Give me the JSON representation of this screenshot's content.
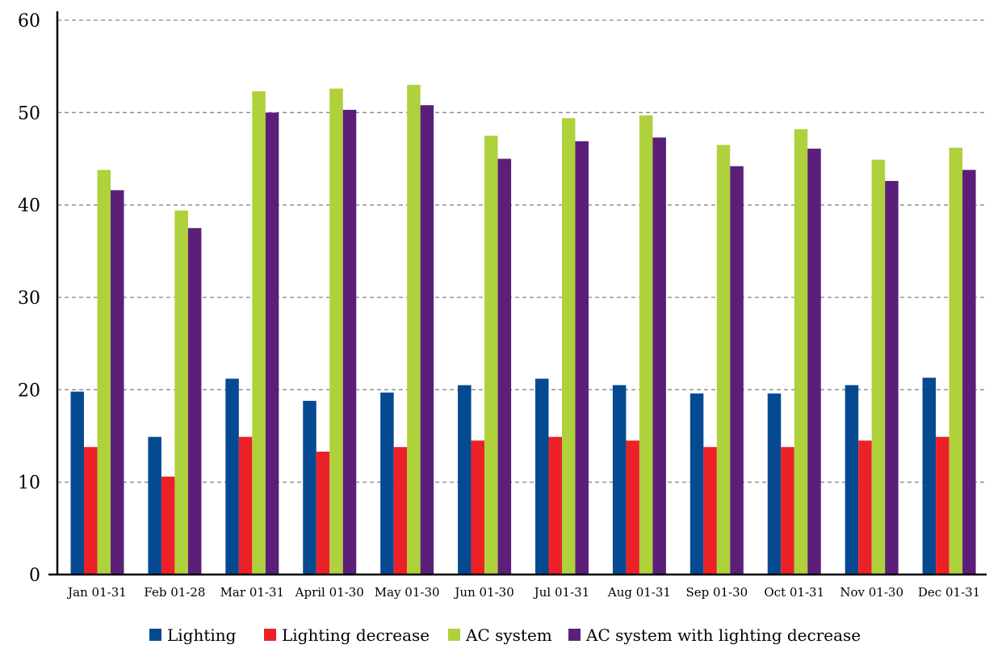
{
  "chart_data": {
    "type": "bar",
    "title": "",
    "xlabel": "",
    "ylabel": "",
    "ylim": [
      0,
      60
    ],
    "yticks": [
      0,
      10,
      20,
      30,
      40,
      50,
      60
    ],
    "grid": true,
    "legend_position": "bottom",
    "categories": [
      "Jan 01-31",
      "Feb 01-28",
      "Mar 01-31",
      "April 01-30",
      "May 01-30",
      "Jun 01-30",
      "Jul 01-31",
      "Aug 01-31",
      "Sep 01-30",
      "Oct 01-31",
      "Nov 01-30",
      "Dec 01-31"
    ],
    "series": [
      {
        "name": "Lighting",
        "color": "#054a91",
        "values": [
          19.8,
          14.9,
          21.2,
          18.8,
          19.7,
          20.5,
          21.2,
          20.5,
          19.6,
          19.6,
          20.5,
          21.3
        ]
      },
      {
        "name": "Lighting decrease",
        "color": "#ec2127",
        "values": [
          13.8,
          10.6,
          14.9,
          13.3,
          13.8,
          14.5,
          14.9,
          14.5,
          13.8,
          13.8,
          14.5,
          14.9
        ]
      },
      {
        "name": "AC system",
        "color": "#afd13c",
        "values": [
          43.8,
          39.4,
          52.3,
          52.6,
          53.0,
          47.5,
          49.4,
          49.7,
          46.5,
          48.2,
          44.9,
          46.2
        ]
      },
      {
        "name": "AC system with lighting decrease",
        "color": "#5b1f7a",
        "values": [
          41.6,
          37.5,
          50.0,
          50.3,
          50.8,
          45.0,
          46.9,
          47.3,
          44.2,
          46.1,
          42.6,
          43.8
        ]
      }
    ]
  }
}
